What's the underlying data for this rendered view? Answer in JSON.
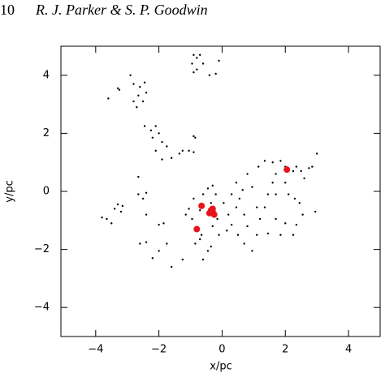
{
  "header": {
    "page": "10",
    "authors": "R. J. Parker & S. P. Goodwin"
  },
  "chart_data": {
    "type": "scatter",
    "x_label": "x/pc",
    "y_label": "y/pc",
    "xlim": [
      -5.1,
      5
    ],
    "ylim": [
      -5,
      5
    ],
    "xticks": [
      {
        "value": -4,
        "label": "−4"
      },
      {
        "value": -2,
        "label": "−2"
      },
      0,
      2,
      4
    ],
    "yticks": [
      {
        "value": -4,
        "label": "−4"
      },
      {
        "value": -2,
        "label": "−2"
      },
      0,
      2,
      4
    ],
    "series": [
      {
        "color": "#000000",
        "size": 1.2,
        "x": [
          -0.9,
          -0.8,
          -0.7,
          -0.95,
          -0.8,
          -0.9,
          -0.4,
          -0.2,
          -0.1,
          -0.6,
          -3.6,
          -3.3,
          -3.25,
          -2.9,
          -2.8,
          -2.6,
          -2.45,
          -2.4,
          -2.65,
          -2.5,
          -2.7,
          -2.8,
          -2.45,
          -2.25,
          -2.1,
          -2.2,
          -2.0,
          -1.9,
          -1.75,
          -2.1,
          -1.6,
          -1.9,
          -1.35,
          -1.25,
          -0.9,
          -0.85,
          -1.05,
          -0.9,
          -3.8,
          -3.65,
          -3.5,
          -3.4,
          -3.3,
          -3.15,
          -3.2,
          -2.65,
          -2.5,
          -2.4,
          -2.6,
          -2.4,
          -2.0,
          -1.85,
          -2.2,
          -2.0,
          -1.75,
          -2.65,
          -2.4,
          -1.25,
          -1.6,
          -0.85,
          -0.95,
          -0.7,
          -0.6,
          -0.45,
          -0.35,
          -0.2,
          0.05,
          0.2,
          0.3,
          -0.1,
          -0.35,
          -0.45,
          -0.7,
          0.45,
          0.55,
          0.7,
          0.8,
          0.7,
          0.95,
          1.1,
          1.2,
          1.35,
          1.45,
          1.6,
          1.7,
          1.15,
          1.35,
          1.6,
          1.85,
          2.0,
          2.25,
          2.35,
          2.5,
          2.6,
          2.75,
          2.85,
          3.0,
          2.95,
          2.55,
          2.35,
          2.25,
          2.0,
          1.7,
          1.85,
          1.45,
          2.1,
          2.3,
          2.45,
          0.95,
          0.8,
          0.45,
          0.3,
          0.65,
          1.7,
          2.0,
          -0.3,
          -0.65,
          -0.3,
          0.15,
          0.5,
          1.1,
          -1.05,
          -0.9,
          -1.15,
          -0.6,
          -0.15
        ],
        "values": [
          4.7,
          4.6,
          4.7,
          4.4,
          4.2,
          4.1,
          4.0,
          4.05,
          4.5,
          4.4,
          3.2,
          3.55,
          3.5,
          4.0,
          3.7,
          3.6,
          3.75,
          3.4,
          3.3,
          3.1,
          2.9,
          3.1,
          2.25,
          2.1,
          2.25,
          1.85,
          2.0,
          1.7,
          1.55,
          1.4,
          1.15,
          1.1,
          1.3,
          1.4,
          1.9,
          1.85,
          1.4,
          1.35,
          -0.9,
          -0.95,
          -1.1,
          -0.6,
          -0.45,
          -0.5,
          -0.7,
          -0.1,
          -0.25,
          -0.8,
          -1.8,
          -1.75,
          -1.15,
          -1.1,
          -2.3,
          -2.05,
          -1.8,
          0.5,
          -0.05,
          -2.35,
          -2.6,
          -1.8,
          -0.95,
          -0.65,
          -0.1,
          0.1,
          -0.4,
          -0.1,
          -0.4,
          -0.8,
          -1.15,
          -1.5,
          -1.9,
          -2.05,
          -1.65,
          -0.55,
          -0.25,
          -0.8,
          -1.2,
          -1.8,
          -2.05,
          -1.5,
          -0.95,
          -0.55,
          -0.1,
          0.3,
          0.6,
          0.85,
          1.05,
          1.0,
          1.05,
          0.85,
          0.7,
          0.85,
          0.7,
          0.45,
          0.8,
          0.85,
          1.3,
          -0.7,
          -0.8,
          -1.15,
          -1.5,
          -1.1,
          -0.95,
          -1.5,
          -1.45,
          -0.1,
          -0.25,
          -0.4,
          0.15,
          0.6,
          0.3,
          -0.1,
          0.05,
          -0.1,
          0.3,
          0.2,
          -1.5,
          -1.2,
          -1.35,
          -1.5,
          -0.55,
          -0.6,
          -0.25,
          -0.8,
          -2.35,
          -0.95
        ]
      },
      {
        "color": "#e8141b",
        "size": 4,
        "x": [
          -0.3,
          -0.35,
          -0.25,
          -0.4,
          -0.3,
          -0.65,
          -0.8,
          2.05
        ],
        "values": [
          -0.7,
          -0.65,
          -0.8,
          -0.75,
          -0.6,
          -0.5,
          -1.3,
          0.75
        ]
      }
    ]
  }
}
